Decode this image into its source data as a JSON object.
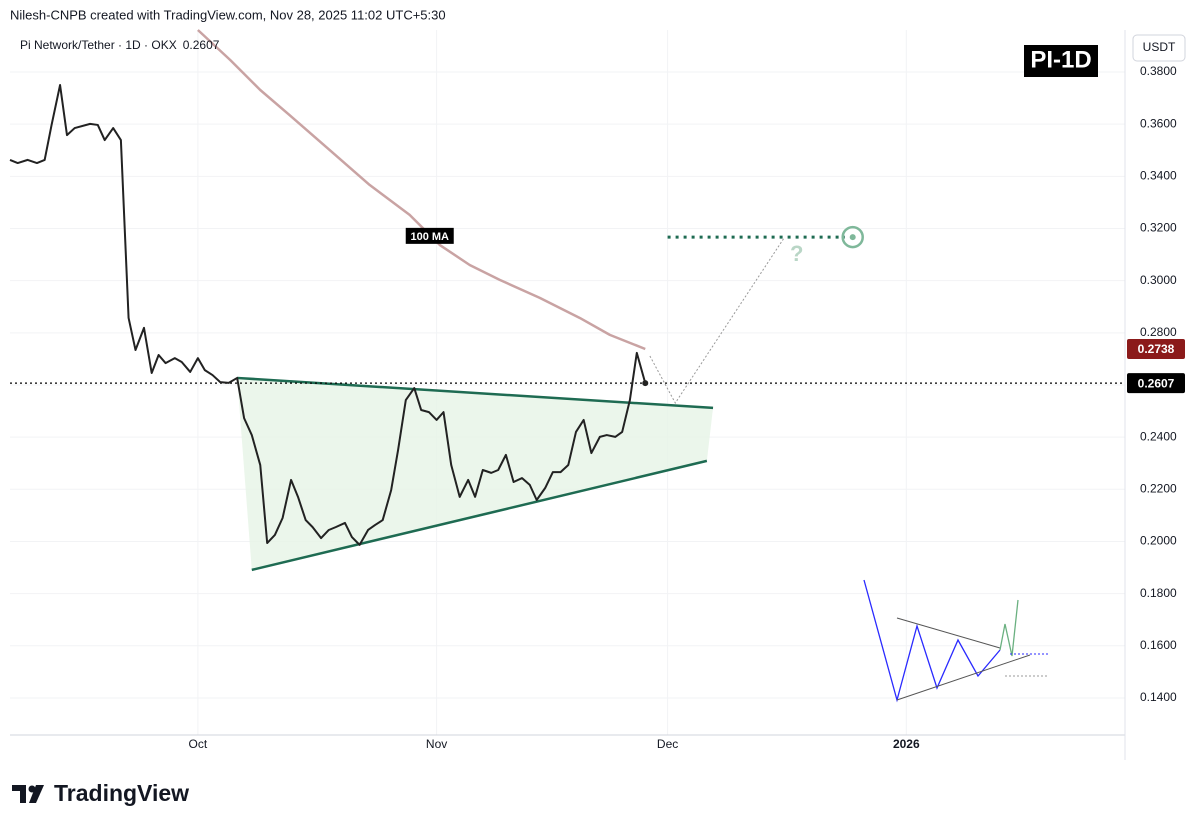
{
  "chart_data": {
    "type": "line",
    "header": "Nilesh-CNPB created with TradingView.com, Nov 28, 2025 11:02 UTC+5:30",
    "currency": "USDT",
    "badge": "PI-1D",
    "watermark": "TradingView",
    "question": "?",
    "xlim": [
      -24.4,
      120.4
    ],
    "xticks": [
      {
        "value": 0,
        "label": "Oct"
      },
      {
        "value": 31,
        "label": "Nov"
      },
      {
        "value": 61,
        "label": "Dec"
      },
      {
        "value": 92,
        "label": "2026"
      }
    ],
    "ylim": [
      0.1258,
      0.3961
    ],
    "yticks": [
      {
        "value": 0.38,
        "label": "0.3800"
      },
      {
        "value": 0.36,
        "label": "0.3600"
      },
      {
        "value": 0.34,
        "label": "0.3400"
      },
      {
        "value": 0.32,
        "label": "0.3200"
      },
      {
        "value": 0.3,
        "label": "0.3000"
      },
      {
        "value": 0.28,
        "label": "0.2800"
      },
      {
        "value": 0.26,
        "label": "0.2600"
      },
      {
        "value": 0.24,
        "label": "0.2400"
      },
      {
        "value": 0.22,
        "label": "0.2200"
      },
      {
        "value": 0.2,
        "label": "0.2000"
      },
      {
        "value": 0.18,
        "label": "0.1800"
      },
      {
        "value": 0.16,
        "label": "0.1600"
      },
      {
        "value": 0.14,
        "label": "0.1400"
      }
    ],
    "grid": true,
    "last_values": [
      {
        "value": 0.2607,
        "label": "0.2607",
        "color": "#000000"
      },
      {
        "value": 0.2738,
        "label": "0.2738",
        "color": "#8b1a1a"
      }
    ],
    "series": [
      {
        "name": "Pi Network/Tether · 1D · OKX",
        "color": "#222222",
        "x": [
          -24.4,
          -23.4,
          -22.1,
          -20.9,
          -19.9,
          -19.0,
          -17.9,
          -17.0,
          -16.0,
          -14.0,
          -13.0,
          -12.1,
          -11.0,
          -10.0,
          -9.0,
          -8.1,
          -7.0,
          -6.0,
          -5.1,
          -4.2,
          -3.0,
          -2.1,
          -1.0,
          0,
          0.9,
          1.9,
          2.9,
          4.0,
          5.1,
          6.0,
          7.0,
          8.1,
          9.0,
          10.0,
          11.0,
          12.1,
          13.0,
          14.0,
          14.9,
          16.0,
          17.0,
          17.9,
          19.1,
          20.0,
          21.0,
          22.1,
          23.0,
          24.0,
          25.1,
          26.0,
          27.0,
          28.1,
          29.0,
          30.0,
          31.0,
          31.9,
          32.9,
          34.0,
          35.1,
          36.0,
          37.0,
          38.1,
          39.0,
          40.0,
          41.0,
          42.1,
          43.1,
          44.0,
          45.1,
          46.1,
          47.1,
          48.1,
          49.1,
          50.1,
          51.1,
          52.2,
          53.1,
          54.2,
          55.1,
          56.1,
          57.0,
          58.1
        ],
        "values": [
          0.3463,
          0.3451,
          0.3463,
          0.3451,
          0.3463,
          0.3597,
          0.375,
          0.3558,
          0.3585,
          0.3601,
          0.3597,
          0.3539,
          0.3585,
          0.3539,
          0.2857,
          0.2734,
          0.2819,
          0.2646,
          0.2715,
          0.2684,
          0.2703,
          0.2688,
          0.265,
          0.2703,
          0.2657,
          0.2638,
          0.2611,
          0.2608,
          0.2627,
          0.2473,
          0.2408,
          0.2293,
          0.1994,
          0.2025,
          0.209,
          0.2236,
          0.2171,
          0.2082,
          0.2055,
          0.2013,
          0.2044,
          0.2055,
          0.2071,
          0.2017,
          0.1987,
          0.2044,
          0.2063,
          0.2082,
          0.2197,
          0.2351,
          0.2542,
          0.2588,
          0.2504,
          0.2496,
          0.2466,
          0.2496,
          0.2293,
          0.2171,
          0.2236,
          0.2171,
          0.2274,
          0.2263,
          0.2274,
          0.2332,
          0.2228,
          0.2243,
          0.2217,
          0.2159,
          0.2205,
          0.2266,
          0.2266,
          0.2293,
          0.242,
          0.2466,
          0.2339,
          0.2401,
          0.2408,
          0.2401,
          0.242,
          0.2542,
          0.2723,
          0.2607
        ]
      },
      {
        "name": "100 MA",
        "color": "#c9a3a3",
        "x": [
          0,
          4.2,
          8.1,
          11.9,
          17.1,
          22.3,
          27.5,
          31.4,
          35.3,
          39.2,
          44.4,
          49.6,
          53.5,
          58.1
        ],
        "values": [
          0.3961,
          0.3846,
          0.3731,
          0.3635,
          0.3501,
          0.3367,
          0.3252,
          0.3137,
          0.306,
          0.3003,
          0.2934,
          0.2857,
          0.2792,
          0.2738
        ]
      }
    ],
    "triangle": {
      "color": "#1e6b52",
      "upper": {
        "x": [
          5.1,
          66.9
        ],
        "values": [
          0.2627,
          0.2512
        ]
      },
      "lower": {
        "x": [
          7.0,
          66.1
        ],
        "values": [
          0.1891,
          0.2309
        ]
      }
    },
    "projection": {
      "x": [
        58.7,
        62.0,
        76.2
      ],
      "values": [
        0.2711,
        0.2531,
        0.3167
      ]
    },
    "target": {
      "x": [
        61.0,
        84.0
      ],
      "value": 0.3167,
      "color": "#1e6b52"
    }
  }
}
